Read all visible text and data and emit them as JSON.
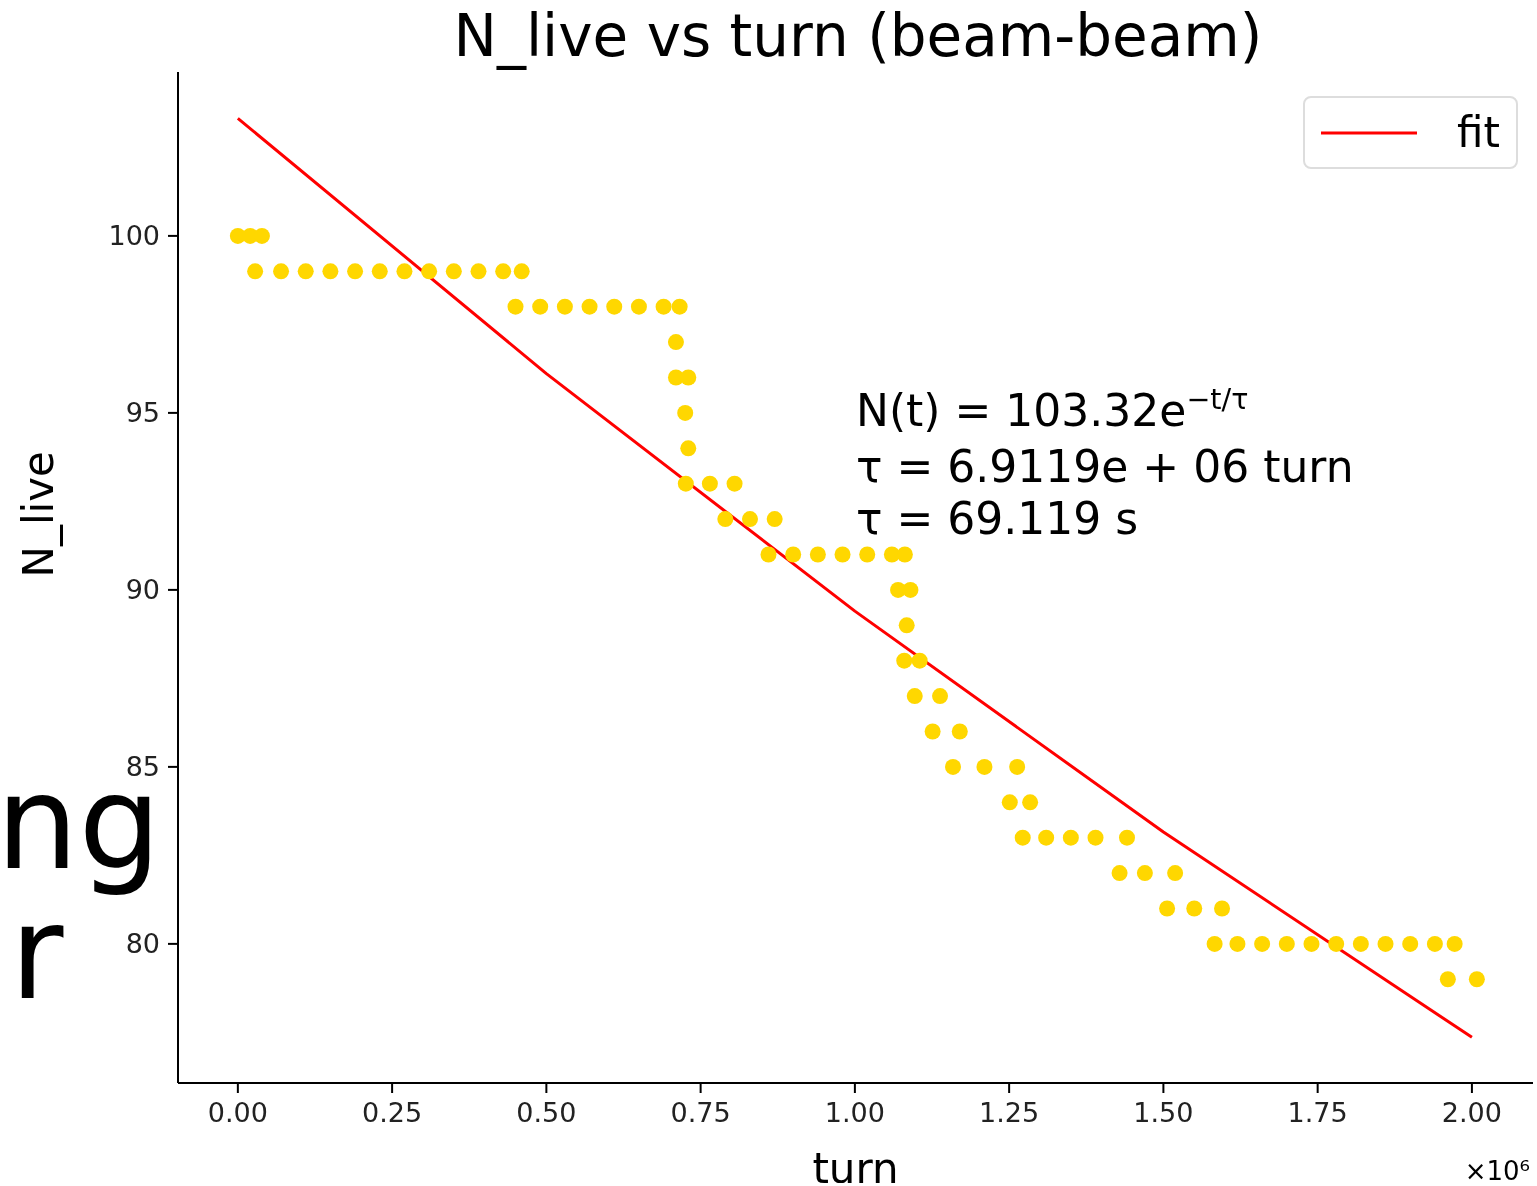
{
  "chart_data": {
    "type": "scatter",
    "title": "N_live vs turn (beam-beam)",
    "xlabel": "turn",
    "ylabel": "N_live",
    "xlim": [
      -0.097,
      2.099
    ],
    "ylim": [
      76.07,
      104.63
    ],
    "xticks": [
      {
        "value": 0,
        "label": "0.00"
      },
      {
        "value": 0.25,
        "label": "0.25"
      },
      {
        "value": 0.5,
        "label": "0.50"
      },
      {
        "value": 0.75,
        "label": "0.75"
      },
      {
        "value": 1,
        "label": "1.00"
      },
      {
        "value": 1.25,
        "label": "1.25"
      },
      {
        "value": 1.5,
        "label": "1.50"
      },
      {
        "value": 1.75,
        "label": "1.75"
      },
      {
        "value": 2,
        "label": "2.00"
      }
    ],
    "yticks": [
      80,
      85,
      90,
      95,
      100
    ],
    "legend": "top right",
    "series": [
      {
        "marker": "circle",
        "color": "#ffd700",
        "x": [
          0,
          0.02,
          0.039,
          0.028,
          0.07,
          0.11,
          0.15,
          0.19,
          0.23,
          0.27,
          0.31,
          0.35,
          0.39,
          0.43,
          0.46,
          0.45,
          0.49,
          0.53,
          0.57,
          0.61,
          0.65,
          0.69,
          0.716,
          0.71,
          0.71,
          0.73,
          0.725,
          0.73,
          0.726,
          0.765,
          0.805,
          0.79,
          0.83,
          0.87,
          0.86,
          0.9,
          0.94,
          0.98,
          1.02,
          1.06,
          1.081,
          1.07,
          1.09,
          1.084,
          1.08,
          1.105,
          1.097,
          1.138,
          1.126,
          1.17,
          1.159,
          1.21,
          1.263,
          1.251,
          1.284,
          1.272,
          1.31,
          1.35,
          1.39,
          1.441,
          1.429,
          1.47,
          1.519,
          1.506,
          1.55,
          1.595,
          1.583,
          1.62,
          1.66,
          1.7,
          1.74,
          1.78,
          1.82,
          1.86,
          1.9,
          1.94,
          1.972,
          1.961,
          2.008
        ],
        "values": [
          100,
          100,
          100,
          99,
          99,
          99,
          99,
          99,
          99,
          99,
          99,
          99,
          99,
          99,
          99,
          98,
          98,
          98,
          98,
          98,
          98,
          98,
          98,
          97,
          96,
          96,
          95,
          94,
          93,
          93,
          93,
          92,
          92,
          92,
          91,
          91,
          91,
          91,
          91,
          91,
          91,
          90,
          90,
          89,
          88,
          88,
          87,
          87,
          86,
          86,
          85,
          85,
          85,
          84,
          84,
          83,
          83,
          83,
          83,
          83,
          82,
          82,
          82,
          81,
          81,
          81,
          80,
          80,
          80,
          80,
          80,
          80,
          80,
          80,
          80,
          80,
          80,
          79,
          79
        ]
      },
      {
        "type": "line",
        "name": "fit",
        "color": "#ff0000",
        "x": [
          0,
          0.5,
          1,
          1.5,
          2
        ],
        "values": [
          103.32,
          96.11,
          89.4,
          83.16,
          77.36
        ]
      }
    ],
    "annotations": [
      "N(t) = 103.32e$^{−t/τ}$",
      "τ = 6.9119e + 06 turn",
      "τ = 69.119 s",
      "×10⁶",
      "ng",
      "r"
    ]
  }
}
